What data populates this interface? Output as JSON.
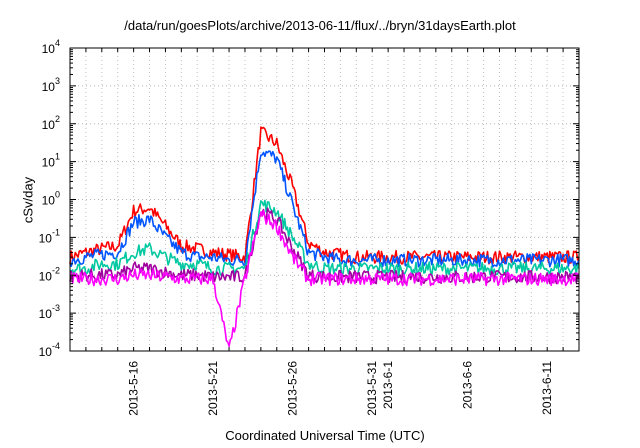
{
  "chart_data": {
    "type": "line",
    "title": "/data/run/goesPlots/archive/2013-06-11/flux/../bryn/31daysEarth.plot",
    "xlabel": "Coordinated Universal Time (UTC)",
    "ylabel": "cSv/day",
    "yscale": "log",
    "ylim": [
      0.0001,
      10000
    ],
    "xlim": [
      "2013-05-12",
      "2013-06-13"
    ],
    "x_ticks": [
      "2013-5-16",
      "2013-5-21",
      "2013-5-26",
      "2013-5-31",
      "2013-6-1",
      "2013-6-6",
      "2013-6-11"
    ],
    "y_ticks": [
      {
        "base": "10",
        "exp": "-4",
        "value": 0.0001
      },
      {
        "base": "10",
        "exp": "-3",
        "value": 0.001
      },
      {
        "base": "10",
        "exp": "-2",
        "value": 0.01
      },
      {
        "base": "10",
        "exp": "-1",
        "value": 0.1
      },
      {
        "base": "10",
        "exp": "0",
        "value": 1
      },
      {
        "base": "10",
        "exp": "1",
        "value": 10
      },
      {
        "base": "10",
        "exp": "2",
        "value": 100
      },
      {
        "base": "10",
        "exp": "3",
        "value": 1000
      },
      {
        "base": "10",
        "exp": "4",
        "value": 10000
      }
    ],
    "grid": true,
    "x": [
      "2013-05-12",
      "2013-05-13",
      "2013-05-14",
      "2013-05-15",
      "2013-05-16",
      "2013-05-17",
      "2013-05-18",
      "2013-05-19",
      "2013-05-20",
      "2013-05-21",
      "2013-05-22",
      "2013-05-23",
      "2013-05-24",
      "2013-05-25",
      "2013-05-26",
      "2013-05-27",
      "2013-05-28",
      "2013-05-29",
      "2013-05-30",
      "2013-05-31",
      "2013-06-01",
      "2013-06-02",
      "2013-06-03",
      "2013-06-04",
      "2013-06-05",
      "2013-06-06",
      "2013-06-07",
      "2013-06-08",
      "2013-06-09",
      "2013-06-10",
      "2013-06-11",
      "2013-06-12",
      "2013-06-13"
    ],
    "series": [
      {
        "color": "#ff0000",
        "values": [
          0.03,
          0.04,
          0.05,
          0.06,
          0.5,
          0.6,
          0.2,
          0.06,
          0.05,
          0.04,
          0.035,
          0.03,
          60,
          30,
          2,
          0.07,
          0.04,
          0.035,
          0.03,
          0.03,
          0.03,
          0.03,
          0.03,
          0.03,
          0.03,
          0.03,
          0.03,
          0.03,
          0.03,
          0.03,
          0.03,
          0.03,
          0.03
        ]
      },
      {
        "color": "#0055ff",
        "values": [
          0.025,
          0.03,
          0.035,
          0.04,
          0.25,
          0.3,
          0.1,
          0.04,
          0.03,
          0.03,
          0.025,
          0.025,
          20,
          12,
          0.7,
          0.04,
          0.03,
          0.025,
          0.025,
          0.025,
          0.025,
          0.025,
          0.025,
          0.025,
          0.025,
          0.025,
          0.025,
          0.025,
          0.025,
          0.025,
          0.025,
          0.025,
          0.025
        ]
      },
      {
        "color": "#00c8a0",
        "values": [
          0.015,
          0.015,
          0.02,
          0.02,
          0.04,
          0.05,
          0.03,
          0.02,
          0.02,
          0.015,
          0.015,
          0.015,
          0.8,
          0.5,
          0.1,
          0.02,
          0.015,
          0.015,
          0.015,
          0.015,
          0.015,
          0.015,
          0.015,
          0.015,
          0.015,
          0.015,
          0.015,
          0.015,
          0.015,
          0.015,
          0.015,
          0.015,
          0.015
        ]
      },
      {
        "color": "#a000a0",
        "values": [
          0.009,
          0.01,
          0.01,
          0.01,
          0.015,
          0.015,
          0.012,
          0.01,
          0.01,
          0.009,
          0.009,
          0.009,
          0.5,
          0.3,
          0.05,
          0.01,
          0.009,
          0.009,
          0.009,
          0.009,
          0.009,
          0.009,
          0.009,
          0.009,
          0.009,
          0.009,
          0.009,
          0.009,
          0.009,
          0.009,
          0.009,
          0.009,
          0.009
        ]
      },
      {
        "color": "#ff00ff",
        "values": [
          0.008,
          0.008,
          0.008,
          0.008,
          0.01,
          0.01,
          0.009,
          0.008,
          0.008,
          0.008,
          0.0001,
          0.008,
          0.4,
          0.2,
          0.03,
          0.008,
          0.008,
          0.008,
          0.008,
          0.008,
          0.008,
          0.008,
          0.008,
          0.008,
          0.008,
          0.008,
          0.008,
          0.008,
          0.008,
          0.008,
          0.008,
          0.008,
          0.008
        ]
      }
    ]
  }
}
